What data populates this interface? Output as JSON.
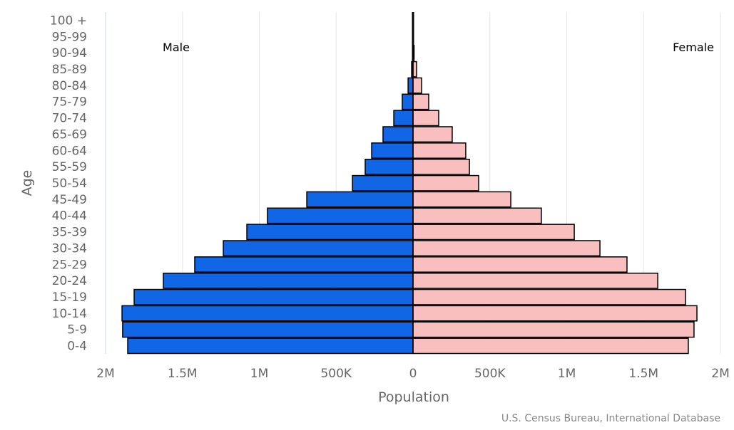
{
  "chart_data": {
    "type": "bar",
    "orientation": "horizontal-pyramid",
    "xlabel": "Population",
    "ylabel": "Age",
    "credit": "U.S. Census Bureau, International Database",
    "xlim": [
      -2000000,
      2000000
    ],
    "x_tick_labels": [
      "2M",
      "1.5M",
      "1M",
      "500K",
      "0",
      "500K",
      "1M",
      "1.5M",
      "2M"
    ],
    "x_tick_values": [
      -2000000,
      -1500000,
      -1000000,
      -500000,
      0,
      500000,
      1000000,
      1500000,
      2000000
    ],
    "grid": true,
    "categories": [
      "0-4",
      "5-9",
      "10-14",
      "15-19",
      "20-24",
      "25-29",
      "30-34",
      "35-39",
      "40-44",
      "45-49",
      "50-54",
      "55-59",
      "60-64",
      "65-69",
      "70-74",
      "75-79",
      "80-84",
      "85-89",
      "90-94",
      "95-99",
      "100 +"
    ],
    "series": [
      {
        "name": "Male",
        "color": "#1166e6",
        "side": "left",
        "values": [
          1856000,
          1889000,
          1893000,
          1814000,
          1624000,
          1420000,
          1234000,
          1081000,
          947000,
          691000,
          394000,
          311000,
          269000,
          195000,
          125000,
          70000,
          32000,
          9000,
          2000,
          300,
          0
        ]
      },
      {
        "name": "Female",
        "color": "#f9bfbf",
        "side": "right",
        "values": [
          1791000,
          1828000,
          1847000,
          1773000,
          1592000,
          1392000,
          1216000,
          1049000,
          835000,
          636000,
          427000,
          367000,
          343000,
          255000,
          167000,
          102000,
          56000,
          23000,
          7000,
          1000,
          0
        ]
      }
    ]
  }
}
